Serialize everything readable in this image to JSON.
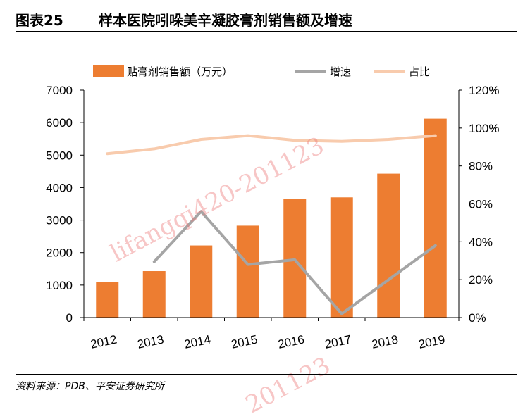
{
  "title": {
    "number": "图表25",
    "text": "样本医院吲哚美辛凝胶膏剂销售额及增速"
  },
  "source": "资料来源：PDB、平安证券研究所",
  "watermark": "lifangqi420-201123",
  "watermark_fragment": "201123",
  "chart_data": {
    "type": "bar",
    "categories": [
      "2012",
      "2013",
      "2014",
      "2015",
      "2016",
      "2017",
      "2018",
      "2019"
    ],
    "series": [
      {
        "name": "贴膏剂销售额（万元）",
        "type": "bar",
        "axis": "left",
        "color": "#ED7D31",
        "values": [
          1100,
          1430,
          2220,
          2830,
          3650,
          3700,
          4430,
          6120
        ]
      },
      {
        "name": "增速",
        "type": "line",
        "axis": "right",
        "color": "#A5A5A5",
        "values": [
          null,
          29.5,
          56,
          28,
          30.5,
          2,
          20,
          38
        ]
      },
      {
        "name": "占比",
        "type": "line",
        "axis": "right",
        "color": "#F8CBAD",
        "values": [
          null,
          null,
          null,
          null,
          null,
          null,
          null,
          null
        ]
      }
    ],
    "share_line_points": [
      86.5,
      89,
      94,
      96,
      93.5,
      93,
      94,
      96
    ],
    "y_left": {
      "min": 0,
      "max": 7000,
      "ticks": [
        "0",
        "1000",
        "2000",
        "3000",
        "4000",
        "5000",
        "6000",
        "7000"
      ]
    },
    "y_right": {
      "min": 0,
      "max": 120,
      "ticks": [
        "0%",
        "20%",
        "40%",
        "60%",
        "80%",
        "100%",
        "120%"
      ]
    },
    "legend_position": "top",
    "grid": false
  }
}
